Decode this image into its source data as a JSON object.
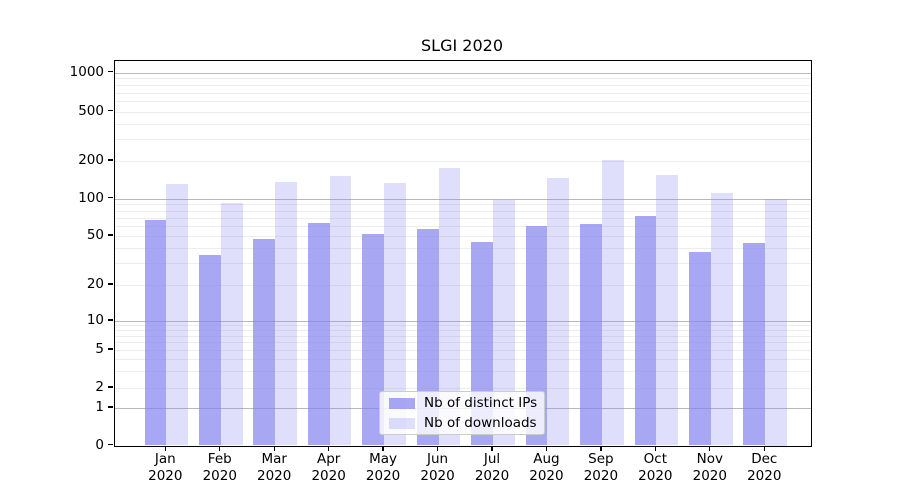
{
  "window": {
    "title": "SLGI 2020"
  },
  "chart_data": {
    "type": "bar",
    "title": "SLGI 2020",
    "categories": [
      "Jan",
      "Feb",
      "Mar",
      "Apr",
      "May",
      "Jun",
      "Jul",
      "Aug",
      "Sep",
      "Oct",
      "Nov",
      "Dec"
    ],
    "year": "2020",
    "series": [
      {
        "name": "Nb of distinct IPs",
        "color": "rgba(130,130,240,0.70)",
        "values": [
          67,
          35,
          47,
          63,
          52,
          57,
          45,
          60,
          62,
          72,
          37,
          44
        ]
      },
      {
        "name": "Nb of downloads",
        "color": "rgba(130,130,240,0.26)",
        "values": [
          130,
          92,
          135,
          152,
          133,
          177,
          98,
          145,
          205,
          155,
          110,
          100
        ]
      }
    ],
    "yticks": [
      0,
      1,
      2,
      5,
      10,
      20,
      50,
      100,
      200,
      500,
      1000
    ],
    "yscale": "symlog",
    "ylim": [
      0,
      1300
    ],
    "xlabel": "",
    "ylabel": "",
    "grid": true,
    "legend_position": "lower center"
  }
}
